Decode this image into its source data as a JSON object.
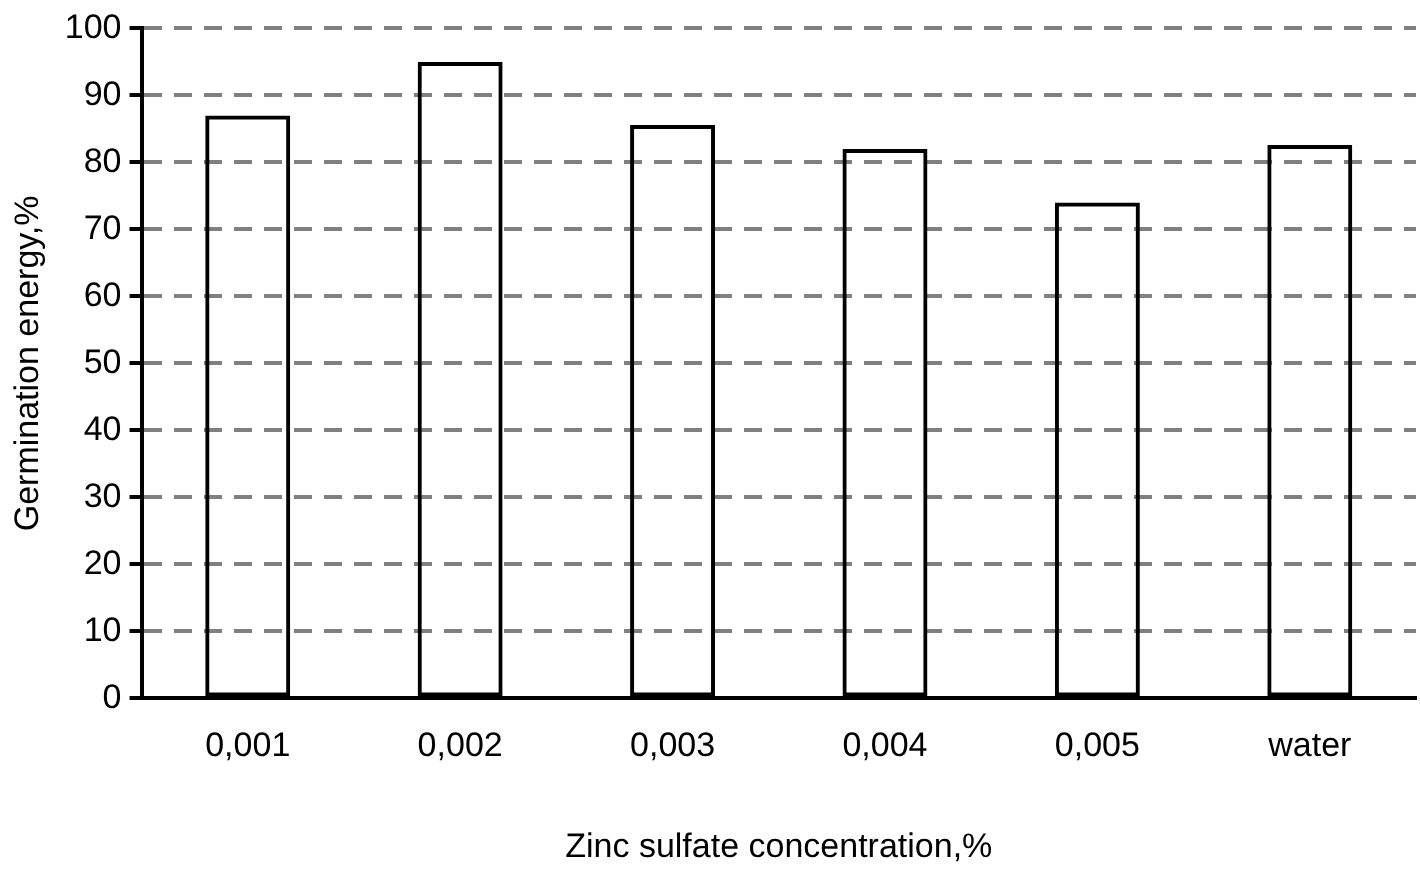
{
  "chart_data": {
    "type": "bar",
    "xlabel": "Zinc sulfate concentration,%",
    "ylabel": "Germination energy,%",
    "categories": [
      "0,001",
      "0,002",
      "0,003",
      "0,004",
      "0,005",
      "water"
    ],
    "values": [
      87,
      95,
      85.6,
      82,
      74,
      82.6
    ],
    "color": "#000000",
    "ylim": [
      0,
      100
    ],
    "yticks": [
      0,
      10,
      20,
      30,
      40,
      50,
      60,
      70,
      80,
      90,
      100
    ],
    "grid": "y",
    "line_style": "dashed",
    "legend": false
  }
}
